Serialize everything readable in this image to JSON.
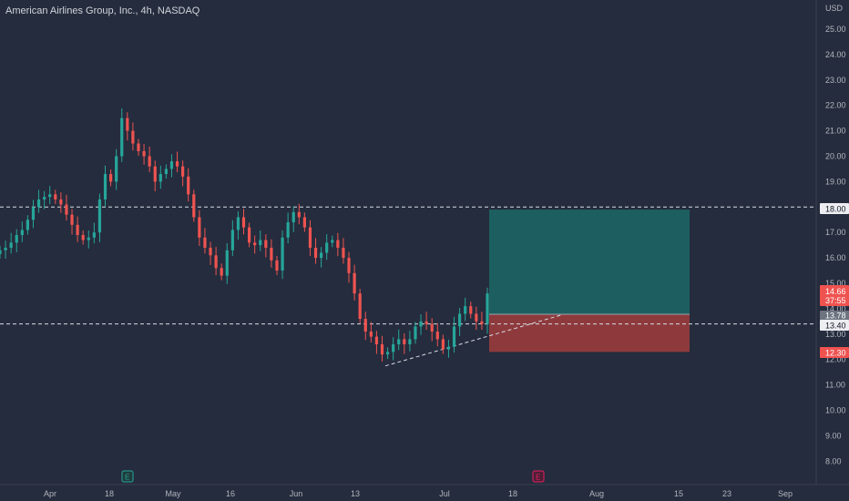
{
  "header": {
    "symbol_title": "American Airlines Group, Inc., 4h, NASDAQ"
  },
  "price_axis": {
    "currency_label": "USD",
    "ticks": [
      "25.00",
      "24.00",
      "23.00",
      "22.00",
      "21.00",
      "20.00",
      "19.00",
      "18.00",
      "17.00",
      "16.00",
      "15.00",
      "14.00",
      "13.00",
      "12.00",
      "11.00",
      "10.00",
      "9.00",
      "8.00"
    ]
  },
  "time_axis": {
    "ticks": [
      "Apr",
      "18",
      "May",
      "16",
      "Jun",
      "13",
      "Jul",
      "18",
      "Aug",
      "15",
      "23",
      "Sep"
    ]
  },
  "price_badges": {
    "horizontal_line_top": "18.00",
    "current_price": "14.66",
    "countdown": "37:55",
    "entry_price": "13.78",
    "horizontal_line_bottom": "13.40",
    "stop_price": "12.30"
  },
  "event_markers": {
    "earnings_1": "E",
    "earnings_2": "E"
  },
  "position_tool": {
    "entry": 13.78,
    "target": 17.9,
    "stop": 12.3
  },
  "horizontal_lines": [
    18.0,
    13.4
  ],
  "trendline": {
    "from": {
      "date": "2022-06-17",
      "price": 11.75
    },
    "to": {
      "date": "2022-07-25",
      "price": 13.75
    }
  },
  "chart_data": {
    "type": "candlestick",
    "series": [
      {
        "values": [
          16.3,
          16.4,
          16.6,
          16.9,
          17.1,
          17.5,
          18.0,
          18.3,
          18.4,
          18.5,
          18.3,
          18.1,
          17.7,
          17.3,
          16.9,
          16.7,
          16.8,
          17.0,
          18.3,
          19.3,
          19.0,
          20.0,
          21.5,
          21.0,
          20.5,
          20.2,
          20.0,
          19.6,
          19.0,
          19.3,
          19.5,
          19.8,
          19.6,
          19.2,
          18.5,
          17.6,
          16.8,
          16.4,
          16.1,
          15.6,
          15.3,
          16.3,
          17.1,
          17.6,
          17.2,
          16.6,
          16.5,
          16.7,
          16.4,
          15.9,
          15.5,
          16.8,
          17.4,
          17.8,
          17.6,
          17.2,
          16.4,
          16.0,
          16.2,
          16.6,
          16.7,
          16.4,
          16.0,
          15.4,
          14.6,
          13.6,
          13.1,
          12.9,
          12.6,
          12.2,
          12.3,
          12.6,
          12.8,
          12.6,
          12.8,
          13.3,
          13.5,
          13.4,
          13.1,
          12.8,
          12.4,
          12.5,
          13.3,
          13.8,
          14.1,
          13.8,
          13.5,
          13.4,
          14.6
        ]
      }
    ],
    "ylim": [
      7.5,
      25.7
    ]
  }
}
